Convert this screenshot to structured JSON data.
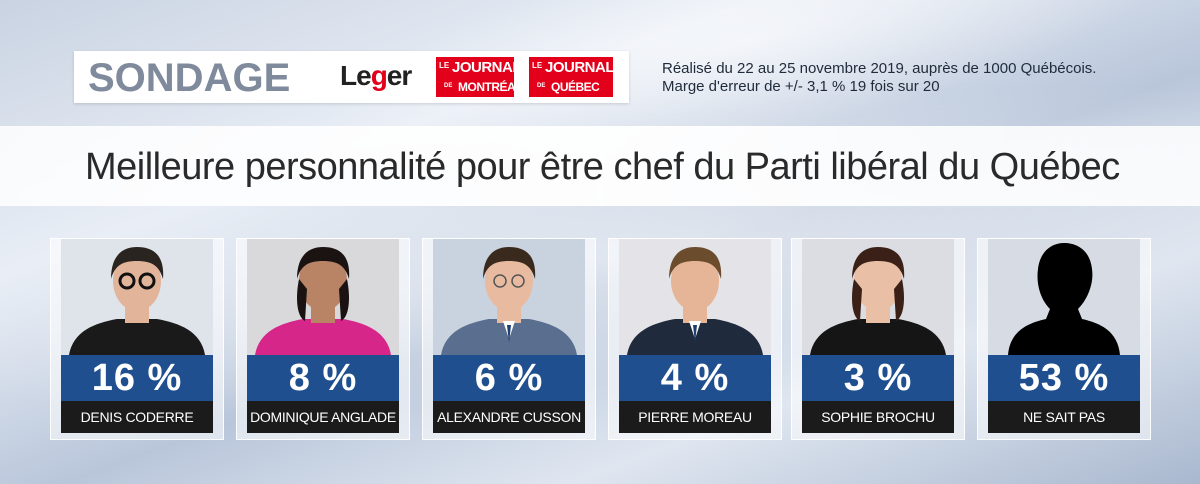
{
  "header": {
    "sondage": "SONDAGE",
    "leger_logo": "Leger",
    "logo_jdm": {
      "le": "LE",
      "main": "JOURNAL",
      "de": "DE",
      "city": "MONTRÉAL"
    },
    "logo_jdq": {
      "le": "LE",
      "main": "JOURNAL",
      "de": "DE",
      "city": "QUÉBEC"
    },
    "source_line1": "Réalisé du 22 au 25 novembre 2019, auprès de 1000 Québécois.",
    "source_line2": "Marge d'erreur de +/- 3,1 % 19 fois sur 20"
  },
  "colors": {
    "pct_bar": "#1f4f8f",
    "name_bar": "#1b1b1b",
    "brand_red": "#e2001a"
  },
  "chart_data": {
    "type": "bar",
    "title": "Meilleure personnalité pour être chef du Parti libéral du Québec",
    "categories": [
      "DENIS CODERRE",
      "DOMINIQUE ANGLADE",
      "ALEXANDRE CUSSON",
      "PIERRE MOREAU",
      "SOPHIE BROCHU",
      "NE SAIT PAS"
    ],
    "values": [
      16,
      8,
      6,
      4,
      3,
      53
    ],
    "labels": [
      "16 %",
      "8 %",
      "6 %",
      "4 %",
      "3 %",
      "53 %"
    ],
    "unit": "%"
  }
}
